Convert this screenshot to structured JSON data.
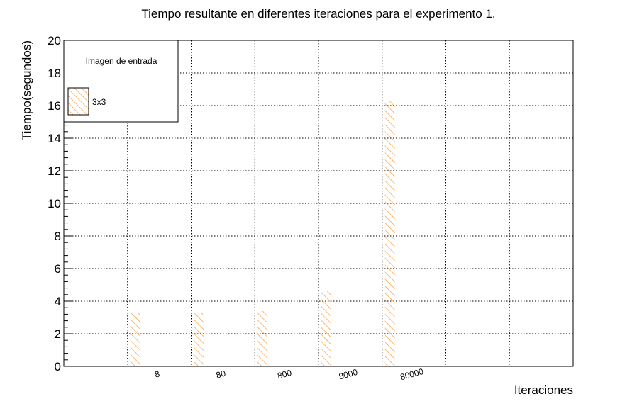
{
  "chart_data": {
    "type": "bar",
    "title": "Tiempo resultante en diferentes iteraciones para el experimento 1.",
    "xlabel": "Iteraciones",
    "ylabel": "Tiempo(segundos)",
    "categories": [
      "8",
      "80",
      "800",
      "8000",
      "80000"
    ],
    "series": [
      {
        "name": "3x3",
        "values": [
          3.3,
          3.3,
          3.4,
          4.6,
          16.3
        ]
      }
    ],
    "ylim": [
      0,
      20
    ],
    "yticks": [
      "0",
      "2",
      "4",
      "6",
      "8",
      "10",
      "12",
      "14",
      "16",
      "18",
      "20"
    ],
    "grid": true,
    "legend": {
      "title": "Imagen de entrada",
      "position": "top-left"
    },
    "bar_color": "#ff9933",
    "bar_fill": "hatched"
  }
}
